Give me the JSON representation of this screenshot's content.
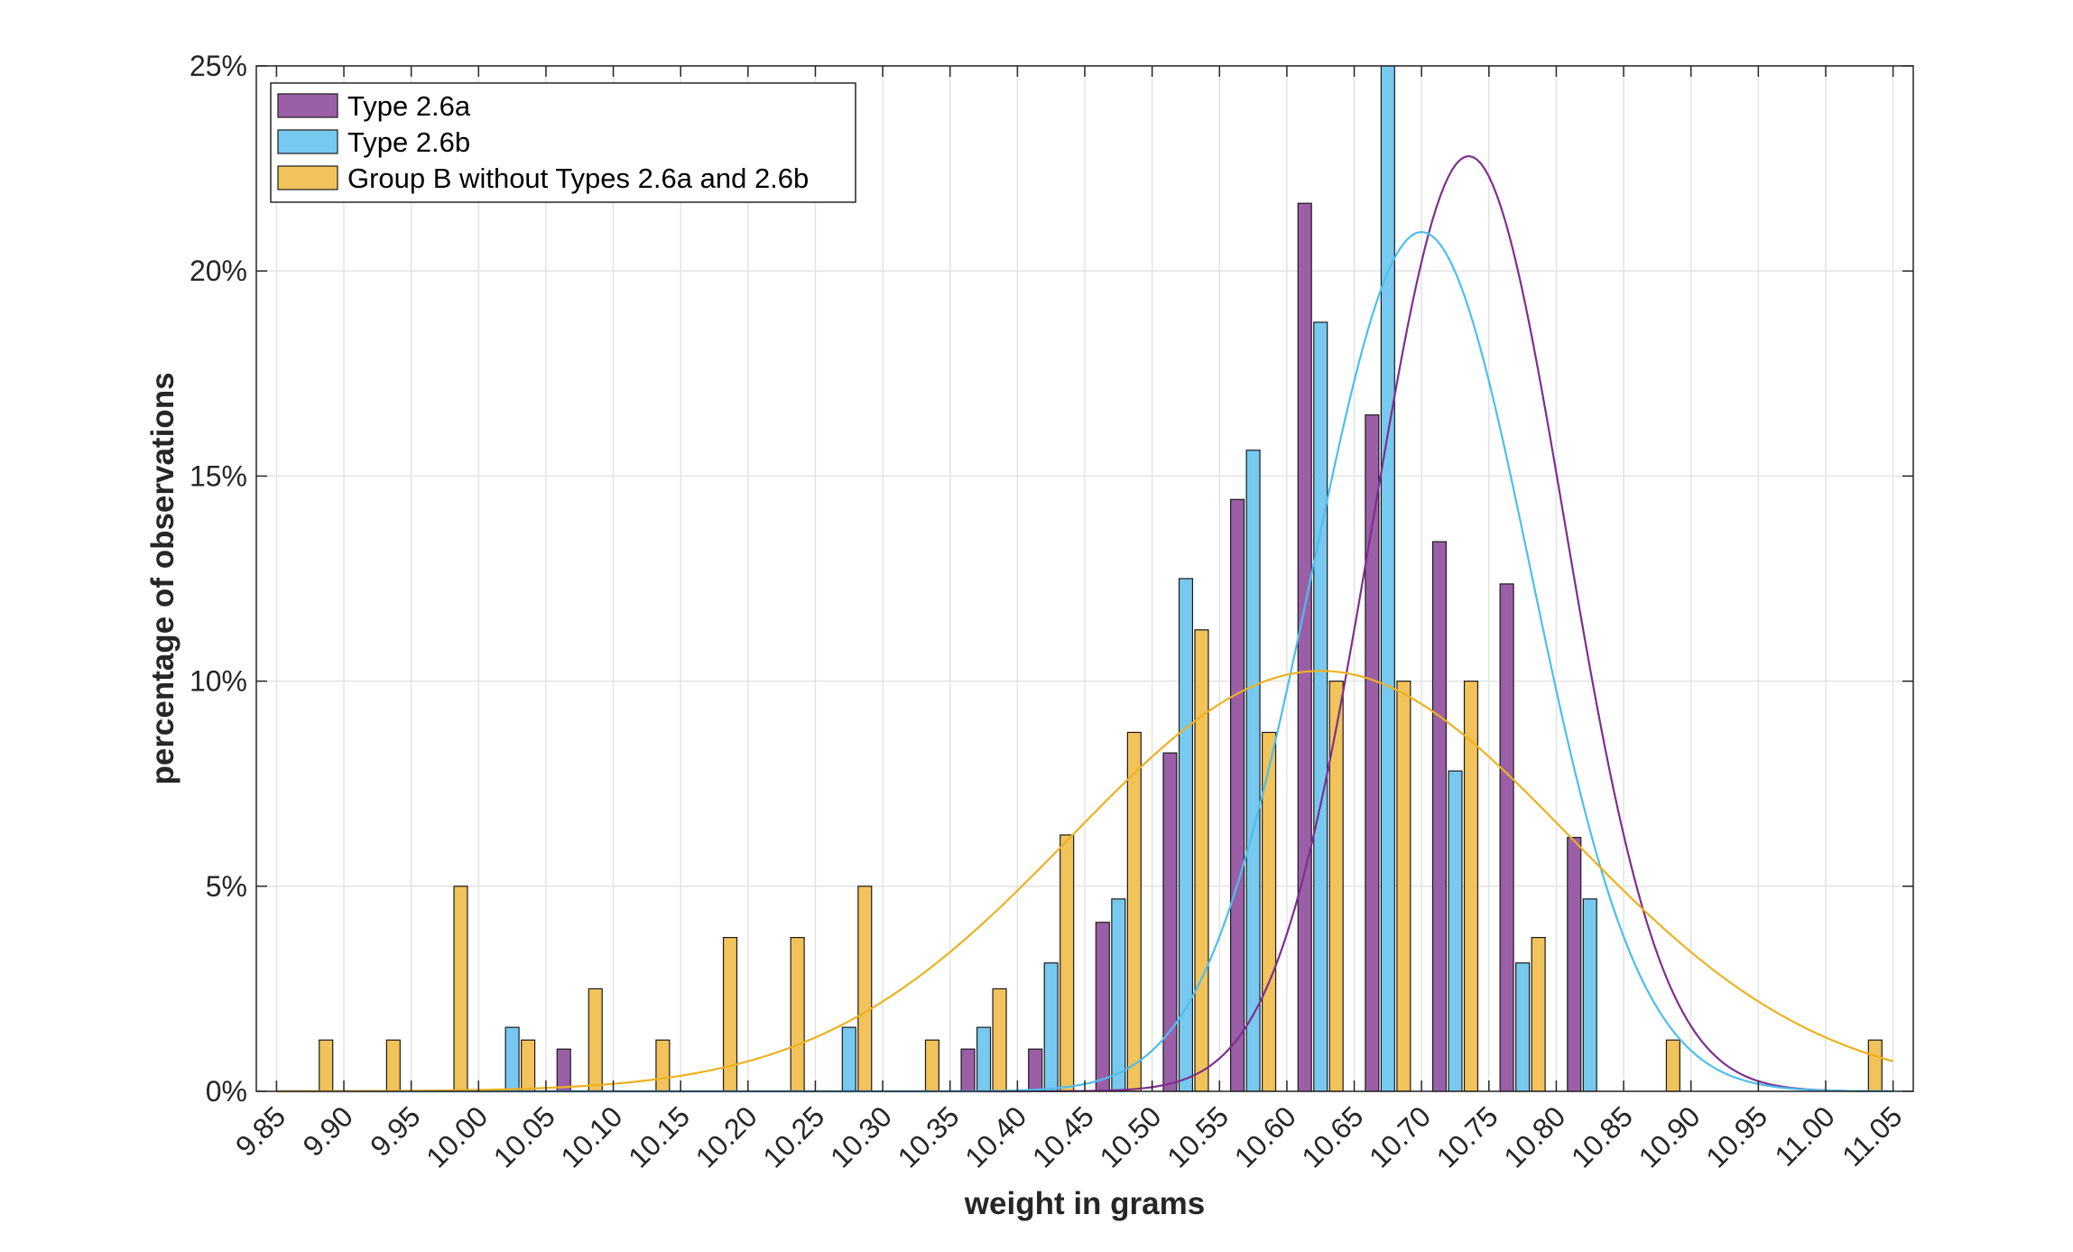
{
  "chart_data": {
    "type": "bar",
    "xlabel": "weight in grams",
    "ylabel": "percentage of observations",
    "xlim": [
      9.835,
      11.065
    ],
    "ylim": [
      0,
      25
    ],
    "grid": true,
    "legend_position": "top-left",
    "x_ticks": [
      "9.85",
      "9.90",
      "9.95",
      "10.00",
      "10.05",
      "10.10",
      "10.15",
      "10.20",
      "10.25",
      "10.30",
      "10.35",
      "10.40",
      "10.45",
      "10.50",
      "10.55",
      "10.60",
      "10.65",
      "10.70",
      "10.75",
      "10.80",
      "10.85",
      "10.90",
      "10.95",
      "11.00",
      "11.05"
    ],
    "y_ticks": [
      {
        "value": 0,
        "label": "0%"
      },
      {
        "value": 5,
        "label": "5%"
      },
      {
        "value": 10,
        "label": "10%"
      },
      {
        "value": 15,
        "label": "15%"
      },
      {
        "value": 20,
        "label": "20%"
      },
      {
        "value": 25,
        "label": "25%"
      }
    ],
    "bins": [
      9.9,
      9.95,
      10.0,
      10.05,
      10.1,
      10.15,
      10.2,
      10.25,
      10.3,
      10.35,
      10.4,
      10.45,
      10.5,
      10.55,
      10.6,
      10.65,
      10.7,
      10.75,
      10.8,
      10.85,
      10.9,
      10.95,
      11.0,
      11.05
    ],
    "series": [
      {
        "name": "Type 2.6a",
        "color": "#9b5fa8",
        "curve_color": "#7e2f8e",
        "values": [
          0,
          0,
          0,
          0,
          1.03,
          0,
          0,
          0,
          0,
          0,
          1.03,
          1.03,
          4.12,
          8.25,
          14.43,
          21.65,
          16.49,
          13.4,
          12.37,
          6.19,
          0,
          0,
          0,
          0
        ],
        "fit": {
          "mean": 10.735,
          "sd": 0.0715,
          "peak": 22.8
        }
      },
      {
        "name": "Type 2.6b",
        "color": "#77c9f0",
        "curve_color": "#4dbeee",
        "values": [
          0,
          0,
          0,
          1.56,
          0,
          0,
          0,
          0,
          1.56,
          0,
          1.56,
          3.13,
          4.69,
          12.5,
          15.63,
          18.75,
          25.0,
          7.81,
          3.13,
          4.69,
          0,
          0,
          0,
          0
        ],
        "fit": {
          "mean": 10.7,
          "sd": 0.081,
          "peak": 20.95
        }
      },
      {
        "name": "Group B without Types 2.6a and 2.6b",
        "color": "#f2c35a",
        "curve_color": "#edb120",
        "values": [
          1.25,
          1.25,
          5.0,
          1.25,
          2.5,
          1.25,
          3.75,
          3.75,
          5.0,
          1.25,
          2.5,
          6.25,
          8.75,
          11.25,
          8.75,
          10.0,
          10.0,
          10.0,
          3.75,
          0,
          1.25,
          0,
          0,
          1.25
        ],
        "fit": {
          "mean": 10.625,
          "sd": 0.185,
          "peak": 10.25
        }
      }
    ]
  }
}
